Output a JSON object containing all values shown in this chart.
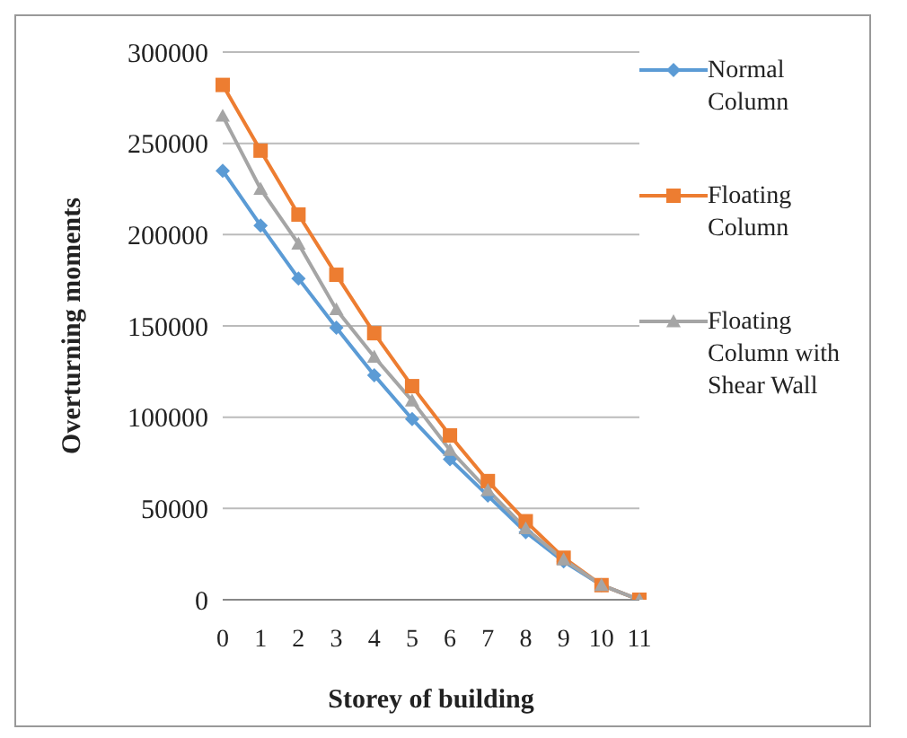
{
  "chart_data": {
    "type": "line",
    "xlabel": "Storey of building",
    "ylabel": "Overturning  moments",
    "categories": [
      "0",
      "1",
      "2",
      "3",
      "4",
      "5",
      "6",
      "7",
      "8",
      "9",
      "10",
      "11"
    ],
    "series": [
      {
        "name": "Normal Column",
        "color": "#5b9bd5",
        "marker": "diamond",
        "values": [
          235000,
          205000,
          176000,
          149000,
          123000,
          99000,
          77000,
          57000,
          37000,
          21000,
          8000,
          0
        ]
      },
      {
        "name": "Floating Column",
        "color": "#ed7d31",
        "marker": "square",
        "values": [
          282000,
          246000,
          211000,
          178000,
          146000,
          117000,
          90000,
          65000,
          43000,
          23000,
          8000,
          0
        ]
      },
      {
        "name": "Floating Column with Shear Wall",
        "color": "#a5a5a5",
        "marker": "triangle",
        "values": [
          265000,
          225000,
          195000,
          159000,
          133000,
          109000,
          82000,
          60000,
          39000,
          22000,
          8000,
          0
        ]
      }
    ],
    "ylim": [
      0,
      300000
    ],
    "yticks": [
      0,
      50000,
      100000,
      150000,
      200000,
      250000,
      300000
    ],
    "grid": "y",
    "legend": "right"
  }
}
